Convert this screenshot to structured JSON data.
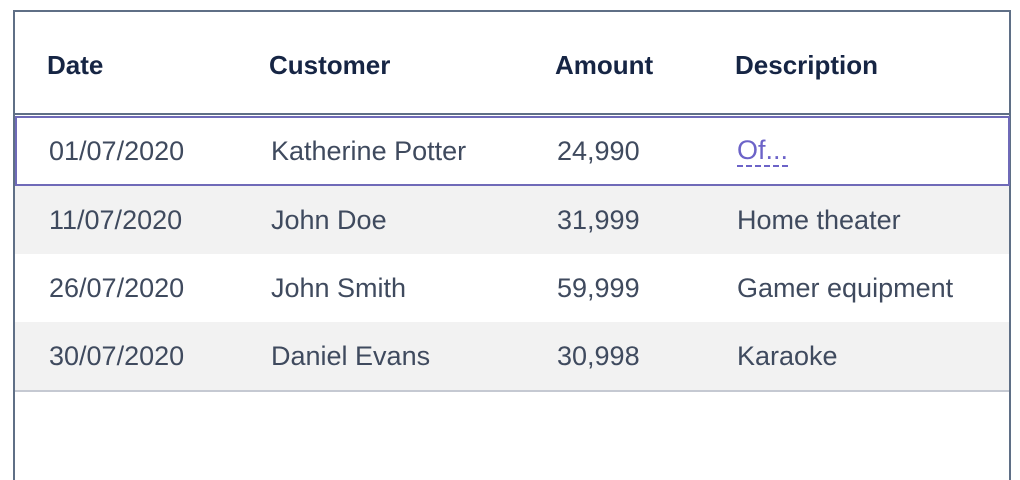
{
  "table": {
    "headers": {
      "date": "Date",
      "customer": "Customer",
      "amount": "Amount",
      "description": "Description"
    },
    "rows": [
      {
        "date": "01/07/2020",
        "customer": "Katherine Potter",
        "amount": "24,990",
        "description": "Of..."
      },
      {
        "date": "11/07/2020",
        "customer": "John Doe",
        "amount": "31,999",
        "description": "Home theater"
      },
      {
        "date": "26/07/2020",
        "customer": "John Smith",
        "amount": "59,999",
        "description": "Gamer equipment"
      },
      {
        "date": "30/07/2020",
        "customer": "Daniel Evans",
        "amount": "30,998",
        "description": "Karaoke"
      }
    ]
  },
  "colors": {
    "header_text": "#162544",
    "body_text": "#3f4a5e",
    "border": "#5f6f86",
    "striped_row": "#f2f2f2",
    "focus_ring": "#6f6ab8",
    "link": "#6c63c8"
  }
}
